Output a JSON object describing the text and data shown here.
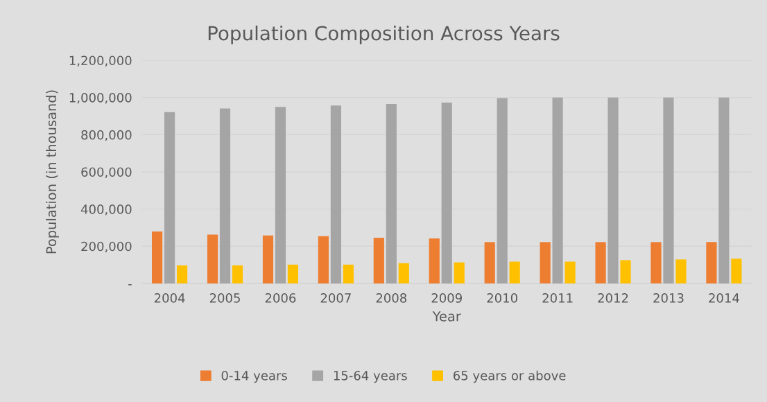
{
  "chart_data": {
    "type": "bar",
    "title": "Population Composition Across Years",
    "xlabel": "Year",
    "ylabel": "Population (in thousand)",
    "categories": [
      "2004",
      "2005",
      "2006",
      "2007",
      "2008",
      "2009",
      "2010",
      "2011",
      "2012",
      "2013",
      "2014"
    ],
    "series": [
      {
        "name": "0-14 years",
        "color": "#ed7d31",
        "values": [
          279000,
          262000,
          258000,
          254000,
          246000,
          242000,
          222000,
          222000,
          222000,
          222000,
          222000
        ]
      },
      {
        "name": "15-64 years",
        "color": "#a5a5a5",
        "values": [
          921000,
          941000,
          949000,
          957000,
          965000,
          973000,
          997000,
          1000000,
          1000000,
          1000000,
          1000000
        ]
      },
      {
        "name": "65 years or above",
        "color": "#ffc000",
        "values": [
          97000,
          97000,
          101000,
          101000,
          109000,
          113000,
          117000,
          117000,
          125000,
          129000,
          133000
        ]
      }
    ],
    "ylim": [
      0,
      1200000
    ],
    "yticks": [
      {
        "value": 0,
        "label": "-"
      },
      {
        "value": 200000,
        "label": "200,000"
      },
      {
        "value": 400000,
        "label": "400,000"
      },
      {
        "value": 600000,
        "label": "600,000"
      },
      {
        "value": 800000,
        "label": "800,000"
      },
      {
        "value": 1000000,
        "label": "1,000,000"
      },
      {
        "value": 1200000,
        "label": "1,200,000"
      }
    ],
    "grid": "y",
    "legend": "bottom"
  }
}
